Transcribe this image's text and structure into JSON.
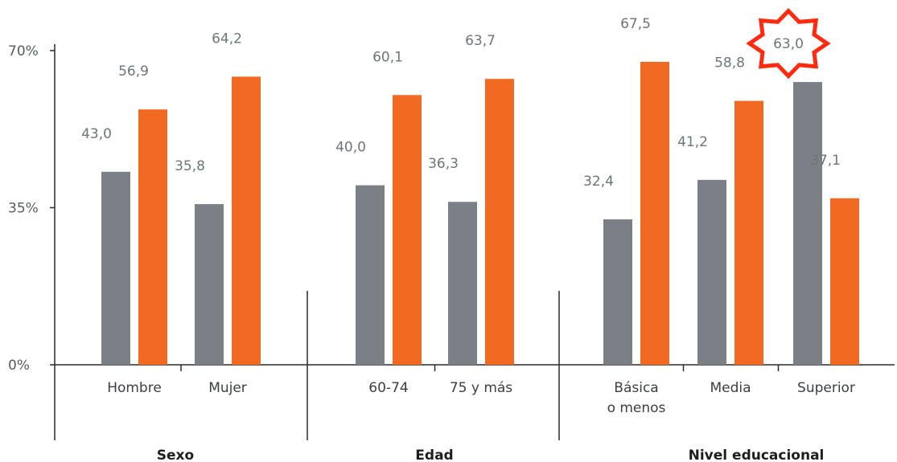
{
  "chart_data": {
    "type": "bar",
    "yticks": [
      "70%",
      "35%",
      "0%"
    ],
    "ytick_values": [
      70,
      35,
      0
    ],
    "ylim": [
      0,
      70
    ],
    "colors": {
      "series_a": "#7a8085",
      "series_b": "#f26a21",
      "highlight": "#ff2a10"
    },
    "groups": [
      {
        "label": "Sexo",
        "categories": [
          {
            "label": [
              "Hombre"
            ],
            "values": [
              43.0,
              56.9
            ],
            "value_labels": [
              "43,0",
              "56,9"
            ]
          },
          {
            "label": [
              "Mujer"
            ],
            "values": [
              35.8,
              64.2
            ],
            "value_labels": [
              "35,8",
              "64,2"
            ]
          }
        ]
      },
      {
        "label": "Edad",
        "categories": [
          {
            "label": [
              "60-74"
            ],
            "values": [
              40.0,
              60.1
            ],
            "value_labels": [
              "40,0",
              "60,1"
            ]
          },
          {
            "label": [
              "75 y más"
            ],
            "values": [
              36.3,
              63.7
            ],
            "value_labels": [
              "36,3",
              "63,7"
            ]
          }
        ]
      },
      {
        "label": "Nivel educacional",
        "categories": [
          {
            "label": [
              "Básica",
              "o menos"
            ],
            "values": [
              32.4,
              67.5
            ],
            "value_labels": [
              "32,4",
              "67,5"
            ]
          },
          {
            "label": [
              "Media"
            ],
            "values": [
              41.2,
              58.8
            ],
            "value_labels": [
              "41,2",
              "58,8"
            ]
          },
          {
            "label": [
              "Superior"
            ],
            "values": [
              63.0,
              37.1
            ],
            "value_labels": [
              "63,0",
              "37,1"
            ],
            "highlight_index": 0
          }
        ]
      }
    ]
  }
}
